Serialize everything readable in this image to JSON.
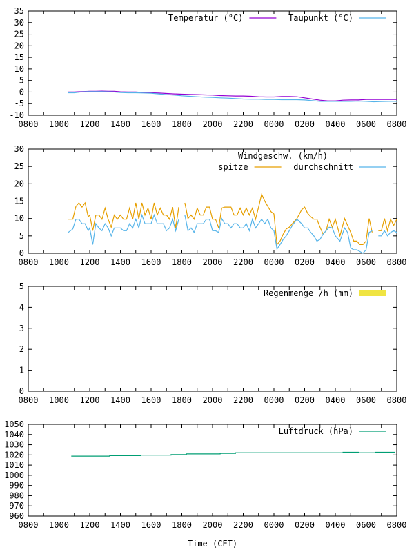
{
  "chart_data": [
    {
      "type": "line",
      "name": "temperature",
      "title": "",
      "xlabel": "",
      "ylabel": "",
      "ylim": [
        -10,
        35
      ],
      "yticks": [
        -10,
        -5,
        0,
        5,
        10,
        15,
        20,
        25,
        30,
        35
      ],
      "xlim_hours": [
        0,
        24
      ],
      "xtick_labels": [
        "0800",
        "1000",
        "1200",
        "1400",
        "1600",
        "1800",
        "2000",
        "2200",
        "0000",
        "0200",
        "0400",
        "0600",
        "0800"
      ],
      "legend_position": "top-right",
      "series": [
        {
          "name": "Temperatur (°C)",
          "color": "#9400d3",
          "x_hours": [
            2.6,
            3.0,
            3.4,
            4.0,
            4.4,
            4.8,
            5.2,
            5.6,
            6.0,
            6.5,
            7.0,
            7.5,
            8.0,
            8.5,
            9.0,
            9.5,
            10.0,
            10.5,
            11.0,
            11.5,
            12.0,
            12.5,
            13.0,
            13.5,
            14.0,
            14.5,
            15.0,
            15.5,
            16.0,
            16.5,
            17.0,
            17.5,
            18.0,
            18.5,
            19.0,
            19.5,
            20.0,
            20.5,
            21.0,
            21.5,
            22.0,
            22.5,
            23.0,
            23.5,
            24.0
          ],
          "values": [
            0,
            0,
            0.2,
            0.3,
            0.3,
            0.4,
            0.3,
            0.3,
            0.1,
            0,
            0,
            -0.2,
            -0.3,
            -0.4,
            -0.6,
            -0.8,
            -0.9,
            -1.0,
            -1.1,
            -1.2,
            -1.3,
            -1.5,
            -1.6,
            -1.7,
            -1.7,
            -1.8,
            -2.0,
            -2.1,
            -2.1,
            -1.9,
            -1.9,
            -2.0,
            -2.5,
            -3.0,
            -3.5,
            -3.8,
            -3.8,
            -3.5,
            -3.4,
            -3.4,
            -3.2,
            -3.2,
            -3.2,
            -3.2,
            -3.2
          ]
        },
        {
          "name": "Taupunkt (°C)",
          "color": "#56b4e9",
          "x_hours": [
            2.6,
            3.0,
            3.4,
            4.0,
            4.4,
            4.8,
            5.2,
            5.6,
            6.0,
            6.5,
            7.0,
            7.5,
            8.0,
            8.5,
            9.0,
            9.5,
            10.0,
            10.5,
            11.0,
            11.5,
            12.0,
            12.5,
            13.0,
            13.5,
            14.0,
            14.5,
            15.0,
            15.5,
            16.0,
            16.5,
            17.0,
            17.5,
            18.0,
            18.5,
            19.0,
            19.5,
            20.0,
            20.5,
            21.0,
            21.5,
            22.0,
            22.5,
            23.0,
            23.5,
            24.0
          ],
          "values": [
            -0.3,
            -0.3,
            0,
            0.2,
            0.2,
            0.2,
            0.1,
            0,
            -0.2,
            -0.3,
            -0.3,
            -0.4,
            -0.5,
            -0.8,
            -1.1,
            -1.3,
            -1.6,
            -1.8,
            -2.0,
            -2.2,
            -2.3,
            -2.5,
            -2.6,
            -2.8,
            -3.0,
            -3.1,
            -3.1,
            -3.2,
            -3.2,
            -3.3,
            -3.3,
            -3.3,
            -3.4,
            -3.7,
            -4.0,
            -4.0,
            -4.0,
            -4.0,
            -4.0,
            -3.9,
            -4.0,
            -4.2,
            -4.1,
            -4.0,
            -4.0
          ]
        }
      ]
    },
    {
      "type": "line",
      "name": "wind",
      "title": "Windgeschw. (km/h)",
      "xlabel": "",
      "ylabel": "",
      "ylim": [
        0,
        30
      ],
      "yticks": [
        0,
        5,
        10,
        15,
        20,
        25,
        30
      ],
      "xlim_hours": [
        0,
        24
      ],
      "xtick_labels": [
        "0800",
        "1000",
        "1200",
        "1400",
        "1600",
        "1800",
        "2000",
        "2200",
        "0000",
        "0200",
        "0400",
        "0600",
        "0800"
      ],
      "legend_position": "top-right",
      "series": [
        {
          "name": "spitze",
          "color": "#e69f00",
          "x_hours": [
            2.6,
            2.9,
            3.1,
            3.3,
            3.5,
            3.7,
            3.9,
            4.0,
            4.2,
            4.4,
            4.6,
            4.8,
            5.0,
            5.2,
            5.4,
            5.6,
            5.8,
            6.0,
            6.2,
            6.4,
            6.6,
            6.8,
            7.0,
            7.2,
            7.4,
            7.6,
            7.8,
            8.0,
            8.2,
            8.4,
            8.6,
            8.8,
            9.0,
            9.2,
            9.4,
            9.6,
            9.8,
            10.0,
            10.2,
            10.4,
            10.6,
            10.8,
            11.0,
            11.2,
            11.4,
            11.6,
            11.8,
            12.0,
            12.2,
            12.4,
            12.6,
            12.8,
            13.0,
            13.2,
            13.4,
            13.6,
            13.8,
            14.0,
            14.2,
            14.4,
            14.6,
            14.8,
            15.0,
            15.2,
            15.4,
            15.6,
            15.8,
            16.0,
            16.2,
            16.4,
            16.6,
            16.8,
            17.0,
            17.2,
            17.5,
            17.8,
            18.0,
            18.2,
            18.4,
            18.6,
            18.8,
            19.0,
            19.2,
            19.4,
            19.6,
            19.8,
            20.0,
            20.3,
            20.6,
            20.8,
            21.0,
            21.2,
            21.4,
            21.6,
            21.8,
            22.0,
            22.2,
            22.4,
            22.6,
            22.8,
            23.0,
            23.2,
            23.4,
            23.6,
            23.8,
            24.0
          ],
          "values": [
            9.8,
            9.8,
            13.5,
            14.5,
            13.3,
            14.5,
            10.5,
            11,
            6.5,
            11,
            11,
            9.8,
            13,
            9.8,
            7.5,
            11,
            9.8,
            11,
            9.8,
            9.8,
            13,
            9.8,
            14.5,
            9.8,
            14.5,
            11,
            13,
            9.8,
            14.5,
            11,
            13,
            11,
            11,
            9.8,
            13.3,
            7.3,
            13.3,
            null,
            14.5,
            10,
            11,
            9.8,
            13,
            11,
            11,
            13.3,
            13.3,
            9.8,
            9.8,
            7.3,
            13,
            13.3,
            13.3,
            13.3,
            11,
            11,
            13,
            11,
            13,
            11,
            13,
            9.8,
            13.3,
            17,
            15,
            13.5,
            12,
            11.3,
            2.5,
            3.5,
            5.5,
            7,
            7.5,
            8.5,
            10,
            12.5,
            13.3,
            11.5,
            10.5,
            9.8,
            9.8,
            7.5,
            5.5,
            6.5,
            9.8,
            7.5,
            9.8,
            5,
            10,
            8,
            6,
            3.5,
            3.5,
            2.5,
            2.5,
            3.5,
            10,
            6,
            null,
            6.5,
            6.5,
            10,
            6.5,
            9.8,
            8,
            9.8
          ]
        },
        {
          "name": "durchschnitt",
          "color": "#56b4e9",
          "x_hours": [
            2.6,
            2.9,
            3.1,
            3.3,
            3.5,
            3.7,
            3.9,
            4.0,
            4.2,
            4.4,
            4.6,
            4.8,
            5.0,
            5.2,
            5.4,
            5.6,
            5.8,
            6.0,
            6.2,
            6.4,
            6.6,
            6.8,
            7.0,
            7.2,
            7.4,
            7.6,
            7.8,
            8.0,
            8.2,
            8.4,
            8.6,
            8.8,
            9.0,
            9.2,
            9.4,
            9.6,
            9.8,
            10.0,
            10.2,
            10.4,
            10.6,
            10.8,
            11.0,
            11.2,
            11.4,
            11.6,
            11.8,
            12.0,
            12.2,
            12.4,
            12.6,
            12.8,
            13.0,
            13.2,
            13.4,
            13.6,
            13.8,
            14.0,
            14.2,
            14.4,
            14.6,
            14.8,
            15.0,
            15.2,
            15.4,
            15.6,
            15.8,
            16.0,
            16.2,
            16.4,
            16.6,
            16.8,
            17.0,
            17.2,
            17.5,
            17.8,
            18.0,
            18.2,
            18.4,
            18.6,
            18.8,
            19.0,
            19.2,
            19.4,
            19.6,
            19.8,
            20.0,
            20.3,
            20.6,
            20.8,
            21.0,
            21.2,
            21.4,
            21.6,
            21.8,
            22.0,
            22.2,
            22.4,
            22.6,
            22.8,
            23.0,
            23.2,
            23.4,
            23.6,
            23.8,
            24.0
          ],
          "values": [
            6,
            7,
            9.8,
            9.8,
            8.5,
            8.5,
            6.5,
            7.3,
            2.5,
            8.5,
            7.3,
            6.5,
            8.5,
            7.3,
            5,
            7.3,
            7.3,
            7.3,
            6.5,
            6.5,
            8.5,
            7.3,
            9.8,
            7.3,
            11,
            8.5,
            8.5,
            8.5,
            11,
            8.5,
            8.5,
            8.5,
            6.5,
            7.3,
            9.8,
            6.5,
            9.8,
            null,
            11,
            6.5,
            7.3,
            6,
            8.5,
            8.5,
            8.5,
            9.8,
            9.8,
            6.5,
            6.5,
            6,
            10,
            8.5,
            8.5,
            7.3,
            8.5,
            8.5,
            7.3,
            7.3,
            8.5,
            6.5,
            9.8,
            7.3,
            8.5,
            9.8,
            8.5,
            9.8,
            7.3,
            6.5,
            1.2,
            2.5,
            4,
            5,
            6.5,
            8,
            9.8,
            8.5,
            7.3,
            7.3,
            6,
            5,
            3.5,
            4,
            5.5,
            6.5,
            7.5,
            7.3,
            5,
            3.5,
            7.3,
            6,
            1.5,
            1,
            1,
            0.5,
            0,
            1,
            6,
            6.5,
            null,
            5,
            5,
            6.5,
            5,
            6,
            6.5,
            6
          ]
        }
      ]
    },
    {
      "type": "bar",
      "name": "rain",
      "title": "",
      "xlabel": "",
      "ylabel": "",
      "ylim": [
        0,
        5
      ],
      "yticks": [
        0,
        1,
        2,
        3,
        4,
        5
      ],
      "xlim_hours": [
        0,
        24
      ],
      "xtick_labels": [
        "0800",
        "1000",
        "1200",
        "1400",
        "1600",
        "1800",
        "2000",
        "2200",
        "0000",
        "0200",
        "0400",
        "0600",
        "0800"
      ],
      "legend_position": "top-right",
      "series": [
        {
          "name": "Regenmenge /h (mm)",
          "color": "#f0e442",
          "values": []
        }
      ]
    },
    {
      "type": "line",
      "name": "pressure",
      "title": "",
      "xlabel": "Time (CET)",
      "ylabel": "",
      "ylim": [
        960,
        1050
      ],
      "yticks": [
        960,
        970,
        980,
        990,
        1000,
        1010,
        1020,
        1030,
        1040,
        1050
      ],
      "xlim_hours": [
        0,
        24
      ],
      "xtick_labels": [
        "0800",
        "1000",
        "1200",
        "1400",
        "1600",
        "1800",
        "2000",
        "2200",
        "0000",
        "0200",
        "0400",
        "0600",
        "0800"
      ],
      "legend_position": "top-right",
      "series": [
        {
          "name": "Luftdruck (hPa)",
          "color": "#009e73",
          "x_hours": [
            2.8,
            5.3,
            5.3,
            7.3,
            7.3,
            9.3,
            9.3,
            10.3,
            10.3,
            12.5,
            12.5,
            13.5,
            13.5,
            20.5,
            20.5,
            21.5,
            21.5,
            22.6,
            22.6,
            23.9
          ],
          "values": [
            1018.8,
            1018.8,
            1019.3,
            1019.3,
            1019.8,
            1019.8,
            1020.3,
            1020.3,
            1021.0,
            1021.0,
            1021.5,
            1021.5,
            1022.1,
            1022.1,
            1022.6,
            1022.6,
            1022.1,
            1022.1,
            1022.6,
            1022.6
          ]
        }
      ]
    }
  ]
}
